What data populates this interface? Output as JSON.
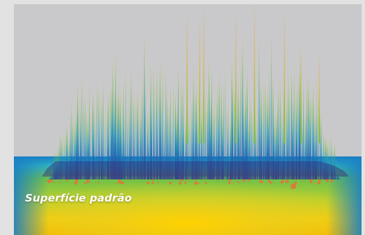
{
  "caption": "Superfície padrão",
  "colors": {
    "background": "#c9c9cb",
    "frame": "#e2e2e2",
    "surface_low": "#2c3f8f",
    "surface_mid": "#1e88c8",
    "surface_high": "#7cbf3a",
    "surface_peak": "#e0b020",
    "heatmap_hot": "#f5c400",
    "heatmap_cool": "#1a8fd0"
  },
  "icons": [
    "surface-plot-image",
    "heatmap-image"
  ]
}
